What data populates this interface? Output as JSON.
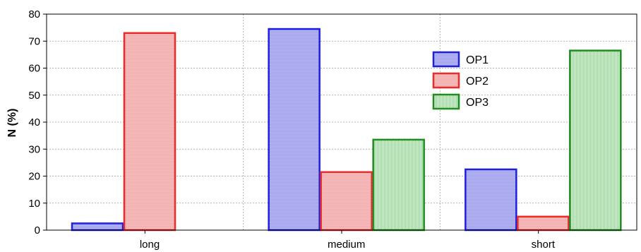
{
  "chart_data": {
    "type": "bar",
    "title": "",
    "xlabel": "",
    "ylabel": "N (%)",
    "ylim": [
      0,
      80
    ],
    "yticks": [
      0,
      10,
      20,
      30,
      40,
      50,
      60,
      70,
      80
    ],
    "grid": true,
    "legend_position": "top-right",
    "categories": [
      "long",
      "medium",
      "short"
    ],
    "series": [
      {
        "name": "OP1",
        "values": [
          2.5,
          74.5,
          22.5
        ],
        "edge": "#1f1fe0",
        "fill": "#b8b8f4"
      },
      {
        "name": "OP2",
        "values": [
          73,
          21.5,
          5
        ],
        "edge": "#ee2a2a",
        "fill": "#f6c0c0"
      },
      {
        "name": "OP3",
        "values": [
          0,
          33.5,
          66.5
        ],
        "edge": "#1e8e1e",
        "fill": "#c9eec9"
      }
    ]
  }
}
